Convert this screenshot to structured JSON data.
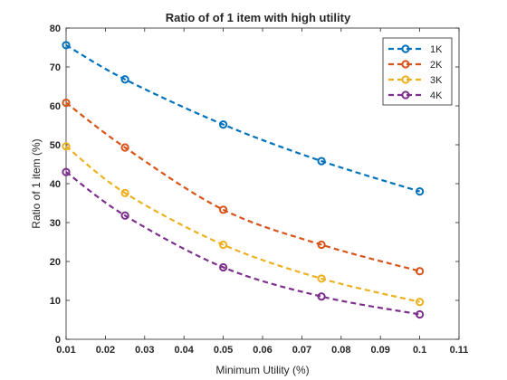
{
  "chart_data": {
    "type": "line",
    "title": "Ratio of of 1 item with high utility",
    "xlabel": "Minimum Utility (%)",
    "ylabel": "Ratio of 1 item (%)",
    "xlim": [
      0.01,
      0.11
    ],
    "ylim": [
      0,
      80
    ],
    "xticks": [
      "0.01",
      "0.02",
      "0.03",
      "0.04",
      "0.05",
      "0.06",
      "0.07",
      "0.08",
      "0.09",
      "0.1",
      "0.11"
    ],
    "yticks": [
      "0",
      "10",
      "20",
      "30",
      "40",
      "50",
      "60",
      "70",
      "80"
    ],
    "x": [
      0.01,
      0.025,
      0.05,
      0.075,
      0.1
    ],
    "series": [
      {
        "name": "1K",
        "values": [
          75.6,
          66.8,
          55.2,
          45.8,
          38.0
        ],
        "color": "#0072BD"
      },
      {
        "name": "2K",
        "values": [
          60.8,
          49.3,
          33.3,
          24.3,
          17.5
        ],
        "color": "#D95319"
      },
      {
        "name": "3K",
        "values": [
          49.6,
          37.6,
          24.3,
          15.6,
          9.6
        ],
        "color": "#EDB120"
      },
      {
        "name": "4K",
        "values": [
          43.0,
          31.8,
          18.5,
          11.0,
          6.4
        ],
        "color": "#7E2F8E"
      }
    ],
    "legend_position": "top-right",
    "grid": false
  }
}
